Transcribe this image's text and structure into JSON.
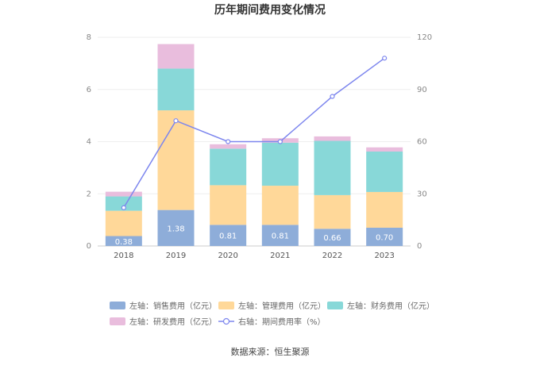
{
  "chart_data": {
    "type": "bar",
    "title": "历年期间费用变化情况",
    "categories": [
      "2018",
      "2019",
      "2020",
      "2021",
      "2022",
      "2023"
    ],
    "series": [
      {
        "name": "左轴：销售费用（亿元）",
        "axis": "left",
        "color": "#8eadd9",
        "values": [
          0.38,
          1.38,
          0.81,
          0.81,
          0.66,
          0.7
        ]
      },
      {
        "name": "左轴：管理费用（亿元）",
        "axis": "left",
        "color": "#ffd899",
        "values": [
          0.97,
          3.82,
          1.52,
          1.5,
          1.29,
          1.37
        ]
      },
      {
        "name": "左轴：财务费用（亿元）",
        "axis": "left",
        "color": "#88d8d8",
        "values": [
          0.55,
          1.6,
          1.4,
          1.65,
          2.08,
          1.55
        ]
      },
      {
        "name": "左轴：研发费用（亿元）",
        "axis": "left",
        "color": "#e9bddd",
        "values": [
          0.18,
          0.94,
          0.17,
          0.17,
          0.17,
          0.16
        ]
      },
      {
        "name": "右轴：期间费用率（%）",
        "axis": "right",
        "type": "line",
        "color": "#7d86ee",
        "values": [
          22,
          72,
          60,
          60,
          86,
          108
        ]
      }
    ],
    "bar_labels": [
      "0.38",
      "1.38",
      "0.81",
      "0.81",
      "0.66",
      "0.70"
    ],
    "ylim_left": [
      0,
      8
    ],
    "yticks_left": [
      "0",
      "2",
      "4",
      "6",
      "8"
    ],
    "ylim_right": [
      0,
      120
    ],
    "yticks_right": [
      "0",
      "30",
      "60",
      "90",
      "120"
    ],
    "grid": true,
    "legend_position": "bottom"
  },
  "source": "数据来源：恒生聚源"
}
